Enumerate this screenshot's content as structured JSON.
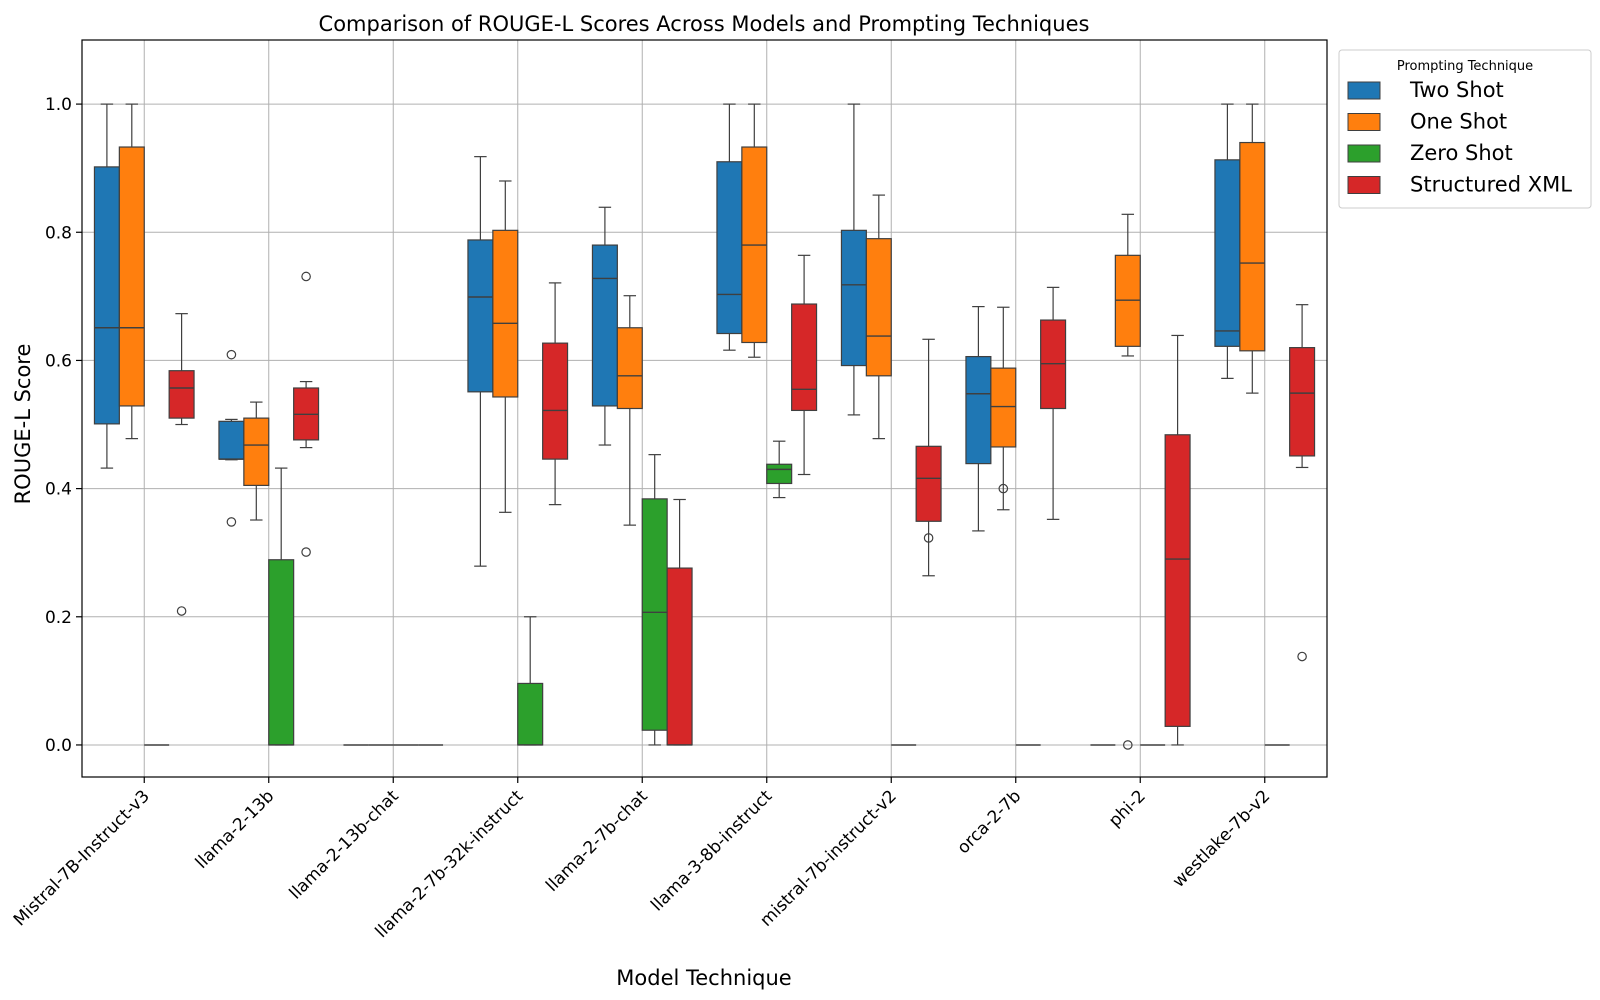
{
  "chart_data": {
    "type": "box",
    "title": "Comparison of ROUGE-L Scores Across Models and Prompting Techniques",
    "xlabel": "Model Technique",
    "ylabel": "ROUGE-L Score",
    "ylim": [
      -0.05,
      1.1
    ],
    "yticks": [
      "0.0",
      "0.2",
      "0.4",
      "0.6",
      "0.8",
      "1.0"
    ],
    "grid": true,
    "legend": {
      "title": "Prompting Technique",
      "placement": "outside-top-right"
    },
    "categories": [
      "Mistral-7B-Instruct-v3",
      "llama-2-13b",
      "llama-2-13b-chat",
      "llama-2-7b-32k-instruct",
      "llama-2-7b-chat",
      "llama-3-8b-instruct",
      "mistral-7b-instruct-v2",
      "orca-2-7b",
      "phi-2",
      "westlake-7b-v2"
    ],
    "series": [
      {
        "name": "Two Shot",
        "color": "#1f77b4",
        "boxes": [
          {
            "whislo": 0.432,
            "q1": 0.501,
            "med": 0.651,
            "q3": 0.902,
            "whishi": 1.0,
            "fliers": []
          },
          {
            "whislo": 0.445,
            "q1": 0.446,
            "med": 0.446,
            "q3": 0.505,
            "whishi": 0.508,
            "fliers": [
              0.609,
              0.348
            ]
          },
          {
            "whislo": 0.0,
            "q1": 0.0,
            "med": 0.0,
            "q3": 0.0,
            "whishi": 0.0,
            "fliers": []
          },
          {
            "whislo": 0.279,
            "q1": 0.551,
            "med": 0.699,
            "q3": 0.788,
            "whishi": 0.918,
            "fliers": []
          },
          {
            "whislo": 0.468,
            "q1": 0.529,
            "med": 0.728,
            "q3": 0.78,
            "whishi": 0.839,
            "fliers": []
          },
          {
            "whislo": 0.616,
            "q1": 0.642,
            "med": 0.703,
            "q3": 0.91,
            "whishi": 1.0,
            "fliers": []
          },
          {
            "whislo": 0.515,
            "q1": 0.592,
            "med": 0.718,
            "q3": 0.803,
            "whishi": 1.0,
            "fliers": []
          },
          {
            "whislo": 0.334,
            "q1": 0.439,
            "med": 0.548,
            "q3": 0.606,
            "whishi": 0.684,
            "fliers": []
          },
          {
            "whislo": 0.0,
            "q1": 0.0,
            "med": 0.0,
            "q3": 0.0,
            "whishi": 0.0,
            "fliers": []
          },
          {
            "whislo": 0.572,
            "q1": 0.622,
            "med": 0.646,
            "q3": 0.913,
            "whishi": 1.0,
            "fliers": []
          }
        ]
      },
      {
        "name": "One Shot",
        "color": "#ff7f0e",
        "boxes": [
          {
            "whislo": 0.478,
            "q1": 0.529,
            "med": 0.651,
            "q3": 0.933,
            "whishi": 1.0,
            "fliers": []
          },
          {
            "whislo": 0.351,
            "q1": 0.405,
            "med": 0.468,
            "q3": 0.51,
            "whishi": 0.535,
            "fliers": []
          },
          {
            "whislo": 0.0,
            "q1": 0.0,
            "med": 0.0,
            "q3": 0.0,
            "whishi": 0.0,
            "fliers": []
          },
          {
            "whislo": 0.363,
            "q1": 0.543,
            "med": 0.658,
            "q3": 0.803,
            "whishi": 0.88,
            "fliers": []
          },
          {
            "whislo": 0.343,
            "q1": 0.525,
            "med": 0.576,
            "q3": 0.651,
            "whishi": 0.701,
            "fliers": []
          },
          {
            "whislo": 0.605,
            "q1": 0.628,
            "med": 0.78,
            "q3": 0.933,
            "whishi": 1.0,
            "fliers": []
          },
          {
            "whislo": 0.478,
            "q1": 0.576,
            "med": 0.638,
            "q3": 0.79,
            "whishi": 0.858,
            "fliers": []
          },
          {
            "whislo": 0.367,
            "q1": 0.465,
            "med": 0.528,
            "q3": 0.588,
            "whishi": 0.683,
            "fliers": [
              0.4
            ]
          },
          {
            "whislo": 0.607,
            "q1": 0.622,
            "med": 0.694,
            "q3": 0.764,
            "whishi": 0.828,
            "fliers": [
              0.0
            ]
          },
          {
            "whislo": 0.549,
            "q1": 0.615,
            "med": 0.752,
            "q3": 0.94,
            "whishi": 1.0,
            "fliers": []
          }
        ]
      },
      {
        "name": "Zero Shot",
        "color": "#2ca02c",
        "boxes": [
          {
            "whislo": 0.0,
            "q1": 0.0,
            "med": 0.0,
            "q3": 0.0,
            "whishi": 0.0,
            "fliers": []
          },
          {
            "whislo": 0.0,
            "q1": 0.0,
            "med": 0.0,
            "q3": 0.289,
            "whishi": 0.432,
            "fliers": []
          },
          {
            "whislo": 0.0,
            "q1": 0.0,
            "med": 0.0,
            "q3": 0.0,
            "whishi": 0.0,
            "fliers": []
          },
          {
            "whislo": 0.0,
            "q1": 0.0,
            "med": 0.0,
            "q3": 0.096,
            "whishi": 0.2,
            "fliers": []
          },
          {
            "whislo": 0.0,
            "q1": 0.023,
            "med": 0.207,
            "q3": 0.384,
            "whishi": 0.453,
            "fliers": []
          },
          {
            "whislo": 0.386,
            "q1": 0.408,
            "med": 0.43,
            "q3": 0.438,
            "whishi": 0.474,
            "fliers": []
          },
          {
            "whislo": 0.0,
            "q1": 0.0,
            "med": 0.0,
            "q3": 0.0,
            "whishi": 0.0,
            "fliers": []
          },
          {
            "whislo": 0.0,
            "q1": 0.0,
            "med": 0.0,
            "q3": 0.0,
            "whishi": 0.0,
            "fliers": []
          },
          {
            "whislo": 0.0,
            "q1": 0.0,
            "med": 0.0,
            "q3": 0.0,
            "whishi": 0.0,
            "fliers": []
          },
          {
            "whislo": 0.0,
            "q1": 0.0,
            "med": 0.0,
            "q3": 0.0,
            "whishi": 0.0,
            "fliers": []
          }
        ]
      },
      {
        "name": "Structured XML",
        "color": "#d62728",
        "boxes": [
          {
            "whislo": 0.5,
            "q1": 0.51,
            "med": 0.557,
            "q3": 0.584,
            "whishi": 0.673,
            "fliers": [
              0.209
            ]
          },
          {
            "whislo": 0.464,
            "q1": 0.476,
            "med": 0.516,
            "q3": 0.557,
            "whishi": 0.567,
            "fliers": [
              0.731,
              0.301
            ]
          },
          {
            "whislo": 0.0,
            "q1": 0.0,
            "med": 0.0,
            "q3": 0.0,
            "whishi": 0.0,
            "fliers": []
          },
          {
            "whislo": 0.375,
            "q1": 0.446,
            "med": 0.522,
            "q3": 0.627,
            "whishi": 0.721,
            "fliers": []
          },
          {
            "whislo": 0.0,
            "q1": 0.0,
            "med": 0.0,
            "q3": 0.276,
            "whishi": 0.383,
            "fliers": []
          },
          {
            "whislo": 0.422,
            "q1": 0.522,
            "med": 0.555,
            "q3": 0.688,
            "whishi": 0.764,
            "fliers": []
          },
          {
            "whislo": 0.264,
            "q1": 0.349,
            "med": 0.416,
            "q3": 0.466,
            "whishi": 0.633,
            "fliers": [
              0.323
            ]
          },
          {
            "whislo": 0.352,
            "q1": 0.525,
            "med": 0.595,
            "q3": 0.663,
            "whishi": 0.714,
            "fliers": []
          },
          {
            "whislo": 0.0,
            "q1": 0.029,
            "med": 0.29,
            "q3": 0.484,
            "whishi": 0.639,
            "fliers": []
          },
          {
            "whislo": 0.433,
            "q1": 0.451,
            "med": 0.549,
            "q3": 0.62,
            "whishi": 0.687,
            "fliers": [
              0.138
            ]
          }
        ]
      }
    ]
  }
}
